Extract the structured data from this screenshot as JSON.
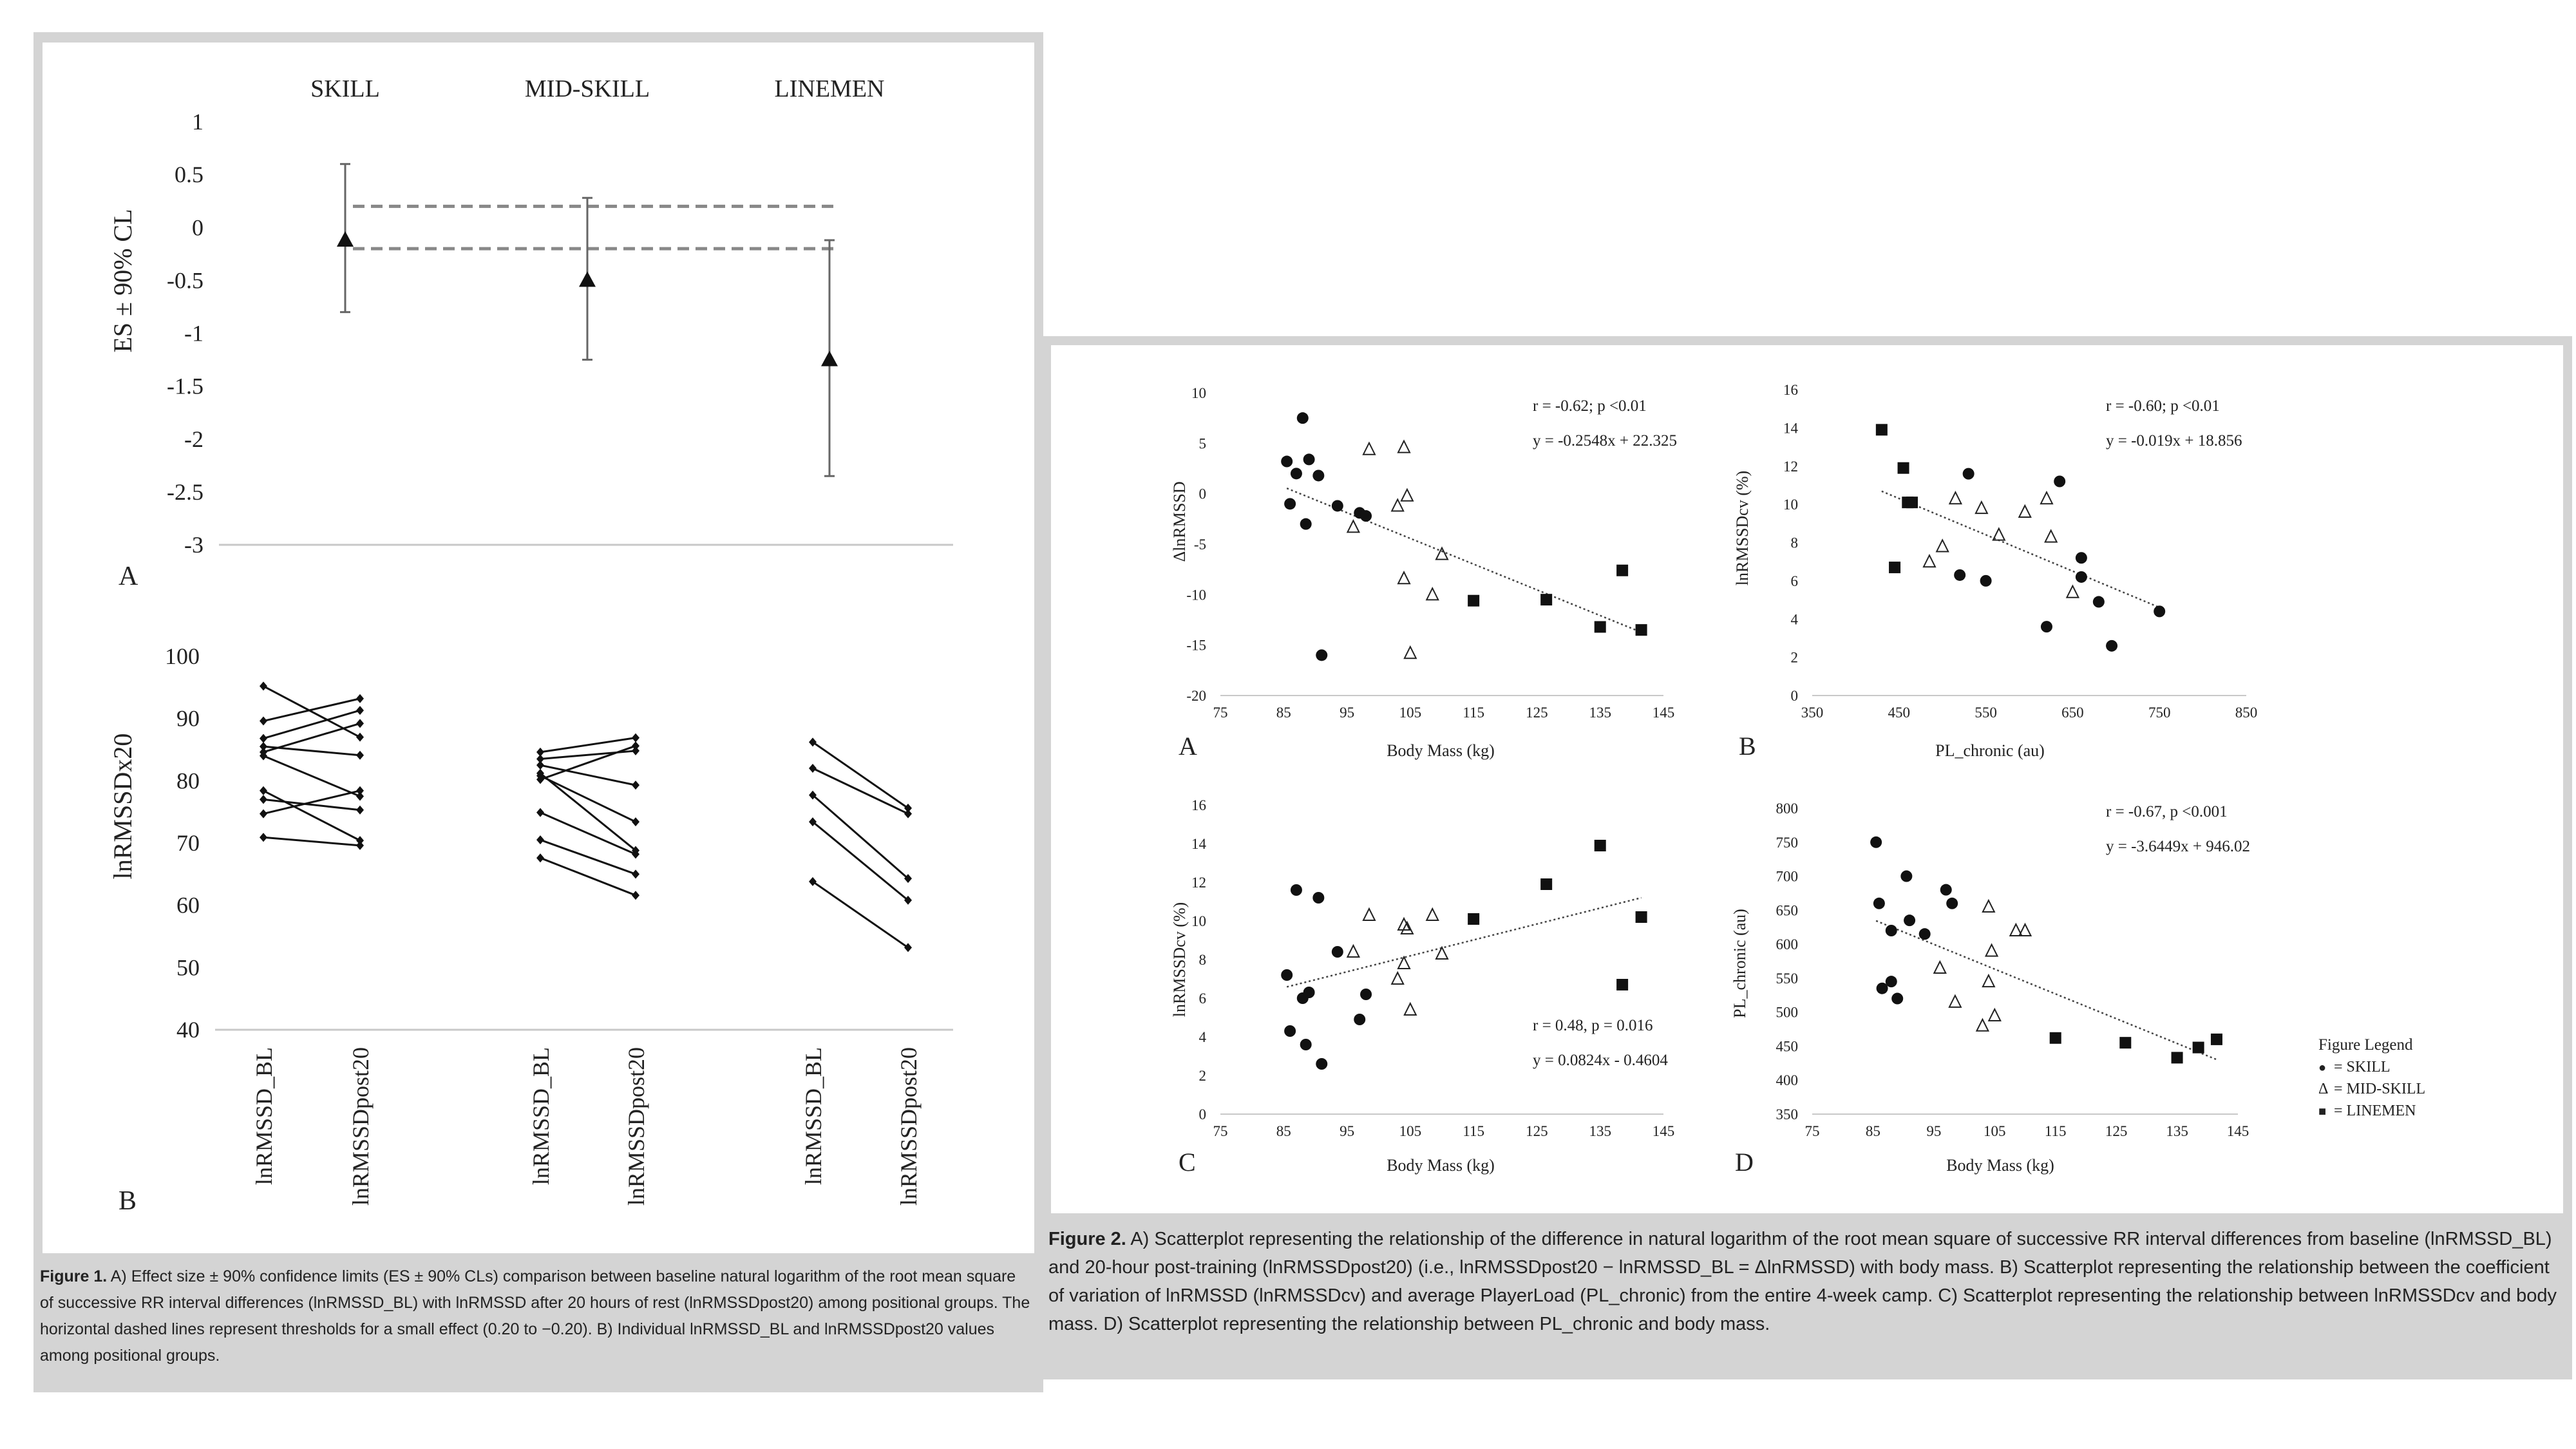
{
  "figure1": {
    "panel_a": {
      "label": "A",
      "group_labels": [
        "SKILL",
        "MID-SKILL",
        "LINEMEN"
      ],
      "y_axis_label": "ES ± 90% CL",
      "y_ticks": [
        "1",
        "0.5",
        "0",
        "-0.5",
        "-1",
        "-1.5",
        "-2",
        "-2.5",
        "-3"
      ],
      "chart_data": {
        "type": "scatter",
        "categories": [
          "SKILL",
          "MID-SKILL",
          "LINEMEN"
        ],
        "es": [
          -0.12,
          -0.5,
          -1.25
        ],
        "ci_upper": [
          0.6,
          0.28,
          -0.12
        ],
        "ci_lower": [
          -0.8,
          -1.25,
          -2.35
        ],
        "thresholds": [
          0.2,
          -0.2
        ],
        "ylim": [
          -3,
          1
        ],
        "ylabel": "ES ± 90% CL"
      }
    },
    "panel_b": {
      "label": "B",
      "y_axis_label": "lnRMSSDx20",
      "y_ticks": [
        "100",
        "90",
        "80",
        "70",
        "60",
        "50",
        "40"
      ],
      "x_tick_labels": [
        "lnRMSSD_BL",
        "lnRMSSDpost20",
        "lnRMSSD_BL",
        "lnRMSSDpost20",
        "lnRMSSD_BL",
        "lnRMSSDpost20"
      ],
      "chart_data": {
        "type": "line",
        "ylim": [
          40,
          100
        ],
        "ylabel": "lnRMSSDx20",
        "groups": [
          {
            "name": "SKILL",
            "pairs": [
              [
                95.2,
                87.0
              ],
              [
                89.6,
                93.2
              ],
              [
                86.8,
                91.3
              ],
              [
                85.5,
                84.1
              ],
              [
                84.6,
                89.2
              ],
              [
                84.0,
                77.5
              ],
              [
                78.4,
                70.4
              ],
              [
                77.0,
                75.3
              ],
              [
                74.7,
                78.4
              ],
              [
                70.9,
                69.6
              ]
            ]
          },
          {
            "name": "MID-SKILL",
            "pairs": [
              [
                84.6,
                86.9
              ],
              [
                83.5,
                84.8
              ],
              [
                82.5,
                79.3
              ],
              [
                81.2,
                68.8
              ],
              [
                80.8,
                73.4
              ],
              [
                74.9,
                68.2
              ],
              [
                70.5,
                65.0
              ],
              [
                67.6,
                61.6
              ],
              [
                80.2,
                85.6
              ]
            ]
          },
          {
            "name": "LINEMEN",
            "pairs": [
              [
                86.2,
                75.6
              ],
              [
                82.0,
                74.7
              ],
              [
                77.7,
                64.3
              ],
              [
                73.4,
                60.8
              ],
              [
                63.8,
                53.2
              ]
            ]
          }
        ]
      }
    },
    "caption_label": "Figure 1.",
    "caption_text": " A) Effect size ± 90% confidence limits (ES ± 90% CLs) comparison between baseline natural logarithm of the root mean square of successive RR interval differences (lnRMSSD_BL) with lnRMSSD after 20 hours of rest (lnRMSSDpost20) among positional groups. The horizontal dashed lines represent thresholds for a small effect (0.20 to −0.20). B) Individual lnRMSSD_BL and lnRMSSDpost20 values among positional groups."
  },
  "figure2": {
    "panel_a": {
      "label": "A",
      "x_axis_label": "Body Mass (kg)",
      "y_axis_label": "ΔlnRMSSD",
      "x_ticks": [
        "75",
        "85",
        "95",
        "105",
        "115",
        "125",
        "135",
        "145"
      ],
      "y_ticks": [
        "10",
        "5",
        "0",
        "-5",
        "-10",
        "-15",
        "-20"
      ],
      "stat_text": "r = -0.62; p <0.01",
      "equation": "y = -0.2548x + 22.325",
      "chart_data": {
        "type": "scatter",
        "xlim": [
          75,
          145
        ],
        "ylim": [
          -20,
          10
        ],
        "xlabel": "Body Mass (kg)",
        "ylabel": "ΔlnRMSSD",
        "trendline": {
          "slope": -0.2548,
          "intercept": 22.325
        },
        "series": [
          {
            "name": "SKILL",
            "marker": "circle",
            "points": [
              [
                85.5,
                3.2
              ],
              [
                86,
                -1
              ],
              [
                87,
                2
              ],
              [
                88,
                7.5
              ],
              [
                88.5,
                -3
              ],
              [
                89,
                3.4
              ],
              [
                90.5,
                1.8
              ],
              [
                91,
                -16
              ],
              [
                93.5,
                -1.2
              ],
              [
                97,
                -1.9
              ],
              [
                98,
                -2.2
              ]
            ]
          },
          {
            "name": "MID-SKILL",
            "marker": "triangle",
            "points": [
              [
                96,
                -3.3
              ],
              [
                98.5,
                4.4
              ],
              [
                103,
                -1.2
              ],
              [
                104,
                4.6
              ],
              [
                104.5,
                -0.2
              ],
              [
                104,
                -8.4
              ],
              [
                105,
                -15.8
              ],
              [
                108.5,
                -10
              ],
              [
                110,
                -6
              ]
            ]
          },
          {
            "name": "LINEMEN",
            "marker": "square",
            "points": [
              [
                115,
                -10.6
              ],
              [
                126.5,
                -10.5
              ],
              [
                135,
                -13.2
              ],
              [
                138.5,
                -7.6
              ],
              [
                141.5,
                -13.5
              ]
            ]
          }
        ]
      }
    },
    "panel_b": {
      "label": "B",
      "x_axis_label": "PL_chronic (au)",
      "y_axis_label": "lnRMSSDcv (%)",
      "x_ticks": [
        "350",
        "450",
        "550",
        "650",
        "750",
        "850"
      ],
      "y_ticks": [
        "16",
        "14",
        "12",
        "10",
        "8",
        "6",
        "4",
        "2",
        "0"
      ],
      "stat_text": "r = -0.60; p <0.01",
      "equation": "y = -0.019x + 18.856",
      "chart_data": {
        "type": "scatter",
        "xlim": [
          350,
          850
        ],
        "ylim": [
          0,
          16
        ],
        "xlabel": "PL_chronic (au)",
        "ylabel": "lnRMSSDcv (%)",
        "trendline": {
          "slope": -0.019,
          "intercept": 18.856
        },
        "series": [
          {
            "name": "SKILL",
            "marker": "circle",
            "points": [
              [
                520,
                6.3
              ],
              [
                530,
                11.6
              ],
              [
                550,
                6.0
              ],
              [
                620,
                3.6
              ],
              [
                635,
                11.2
              ],
              [
                660,
                7.2
              ],
              [
                660,
                6.2
              ],
              [
                680,
                4.9
              ],
              [
                695,
                2.6
              ],
              [
                750,
                4.4
              ]
            ]
          },
          {
            "name": "MID-SKILL",
            "marker": "triangle",
            "points": [
              [
                485,
                7.0
              ],
              [
                500,
                7.8
              ],
              [
                515,
                10.3
              ],
              [
                545,
                9.8
              ],
              [
                565,
                8.4
              ],
              [
                595,
                9.6
              ],
              [
                620,
                10.3
              ],
              [
                625,
                8.3
              ],
              [
                650,
                5.4
              ]
            ]
          },
          {
            "name": "LINEMEN",
            "marker": "square",
            "points": [
              [
                430,
                13.9
              ],
              [
                445,
                6.7
              ],
              [
                455,
                11.9
              ],
              [
                460,
                10.1
              ],
              [
                465,
                10.1
              ]
            ]
          }
        ]
      }
    },
    "panel_c": {
      "label": "C",
      "x_axis_label": "Body Mass (kg)",
      "y_axis_label": "lnRMSSDcv (%)",
      "x_ticks": [
        "75",
        "85",
        "95",
        "105",
        "115",
        "125",
        "135",
        "145"
      ],
      "y_ticks": [
        "16",
        "14",
        "12",
        "10",
        "8",
        "6",
        "4",
        "2",
        "0"
      ],
      "stat_text": "r = 0.48, p = 0.016",
      "equation": "y = 0.0824x - 0.4604",
      "chart_data": {
        "type": "scatter",
        "xlim": [
          75,
          145
        ],
        "ylim": [
          0,
          16
        ],
        "xlabel": "Body Mass (kg)",
        "ylabel": "lnRMSSDcv (%)",
        "trendline": {
          "slope": 0.0824,
          "intercept": -0.4604
        },
        "series": [
          {
            "name": "SKILL",
            "marker": "circle",
            "points": [
              [
                85.5,
                7.2
              ],
              [
                86,
                4.3
              ],
              [
                87,
                11.6
              ],
              [
                88,
                6.0
              ],
              [
                88.5,
                3.6
              ],
              [
                89,
                6.3
              ],
              [
                90.5,
                11.2
              ],
              [
                91,
                2.6
              ],
              [
                93.5,
                8.4
              ],
              [
                97,
                4.9
              ],
              [
                98,
                6.2
              ]
            ]
          },
          {
            "name": "MID-SKILL",
            "marker": "triangle",
            "points": [
              [
                96,
                8.4
              ],
              [
                98.5,
                10.3
              ],
              [
                103,
                7.0
              ],
              [
                104,
                9.8
              ],
              [
                104.5,
                9.6
              ],
              [
                104,
                7.8
              ],
              [
                105,
                5.4
              ],
              [
                108.5,
                10.3
              ],
              [
                110,
                8.3
              ]
            ]
          },
          {
            "name": "LINEMEN",
            "marker": "square",
            "points": [
              [
                115,
                10.1
              ],
              [
                126.5,
                11.9
              ],
              [
                135,
                13.9
              ],
              [
                138.5,
                6.7
              ],
              [
                141.5,
                10.2
              ]
            ]
          }
        ]
      }
    },
    "panel_d": {
      "label": "D",
      "x_axis_label": "Body Mass (kg)",
      "y_axis_label": "PL_chronic (au)",
      "x_ticks": [
        "75",
        "85",
        "95",
        "105",
        "115",
        "125",
        "135",
        "145"
      ],
      "y_ticks": [
        "800",
        "750",
        "700",
        "650",
        "600",
        "550",
        "500",
        "450",
        "400",
        "350"
      ],
      "stat_text": "r = -0.67, p <0.001",
      "equation": "y = -3.6449x + 946.02",
      "chart_data": {
        "type": "scatter",
        "xlim": [
          75,
          145
        ],
        "ylim": [
          350,
          800
        ],
        "xlabel": "Body Mass (kg)",
        "ylabel": "PL_chronic (au)",
        "trendline": {
          "slope": -3.6449,
          "intercept": 946.02
        },
        "series": [
          {
            "name": "SKILL",
            "marker": "circle",
            "points": [
              [
                85.5,
                750
              ],
              [
                86,
                660
              ],
              [
                86.5,
                535
              ],
              [
                88,
                620
              ],
              [
                88,
                545
              ],
              [
                89,
                520
              ],
              [
                90.5,
                700
              ],
              [
                91,
                635
              ],
              [
                93.5,
                615
              ],
              [
                97,
                680
              ],
              [
                98,
                660
              ]
            ]
          },
          {
            "name": "MID-SKILL",
            "marker": "triangle",
            "points": [
              [
                96,
                565
              ],
              [
                98.5,
                515
              ],
              [
                103,
                480
              ],
              [
                104,
                655
              ],
              [
                104.5,
                590
              ],
              [
                104,
                545
              ],
              [
                105,
                495
              ],
              [
                108.5,
                620
              ],
              [
                110,
                620
              ]
            ]
          },
          {
            "name": "LINEMEN",
            "marker": "square",
            "points": [
              [
                115,
                462
              ],
              [
                126.5,
                455
              ],
              [
                135,
                433
              ],
              [
                138.5,
                448
              ],
              [
                141.5,
                460
              ]
            ]
          }
        ]
      }
    },
    "legend": {
      "title": "Figure Legend",
      "items": [
        {
          "symbol": "●",
          "text": "= SKILL"
        },
        {
          "symbol": "Δ",
          "text": "= MID-SKILL"
        },
        {
          "symbol": "■",
          "text": "= LINEMEN"
        }
      ]
    },
    "caption_label": "Figure 2.",
    "caption_text": " A) Scatterplot representing the relationship of the difference in natural logarithm of the root mean square of successive RR interval differences from baseline (lnRMSSD_BL) and 20-hour post-training (lnRMSSDpost20) (i.e., lnRMSSDpost20 − lnRMSSD_BL = ΔlnRMSSD) with body mass. B) Scatterplot representing the relationship between the coefficient of variation of lnRMSSD (lnRMSSDcv) and average PlayerLoad (PL_chronic) from the entire 4-week camp. C) Scatterplot representing the relationship between lnRMSSDcv and body mass. D) Scatterplot representing the relationship between PL_chronic and body mass."
  }
}
